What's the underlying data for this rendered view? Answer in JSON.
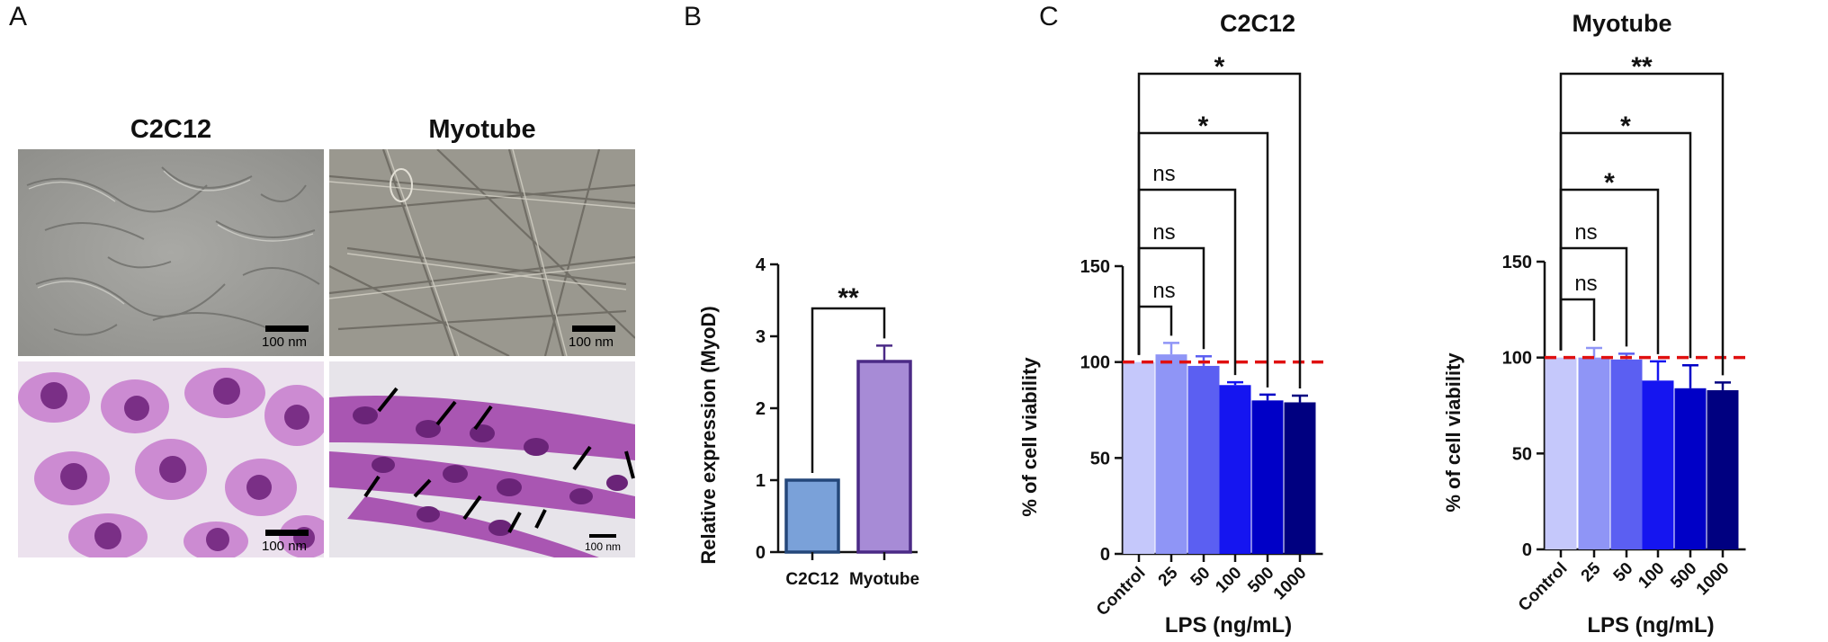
{
  "panels": {
    "a_label": "A",
    "b_label": "B",
    "c_label": "C"
  },
  "micrographs": {
    "col_titles": [
      "C2C12",
      "Myotube"
    ],
    "scale_labels": [
      "100 nm",
      "100 nm",
      "100 nm",
      "100 nm"
    ]
  },
  "colors": {
    "control": "#c5c8fb",
    "lps25": "#8f95f6",
    "lps50": "#5b5ff2",
    "lps100": "#1515f0",
    "lps500": "#0000c7",
    "lps1000": "#000080",
    "c2c12_bar": "#7aa1d9",
    "c2c12_edge": "#24477a",
    "myotube_bar": "#a78bd6",
    "myotube_edge": "#4b2a86",
    "refline": "#e01010"
  },
  "chart_data": [
    {
      "type": "bar",
      "ylabel": "Relative expression (MyoD)",
      "categories": [
        "C2C12",
        "Myotube"
      ],
      "values": [
        1.0,
        2.65
      ],
      "errors": [
        0,
        0.22
      ],
      "ylim": [
        0,
        4
      ],
      "yticks": [
        "0",
        "1",
        "2",
        "3",
        "4"
      ],
      "significance": [
        {
          "from": 0,
          "to": 1,
          "label": "**"
        }
      ]
    },
    {
      "type": "bar",
      "title": "C2C12",
      "xlabel": "LPS (ng/mL)",
      "ylabel": "% of cell viability",
      "categories": [
        "Control",
        "25",
        "50",
        "100",
        "500",
        "1000"
      ],
      "values": [
        100,
        104,
        98,
        88,
        80,
        79
      ],
      "errors": [
        0,
        6,
        5,
        1.5,
        3,
        3.5
      ],
      "ylim": [
        0,
        150
      ],
      "yticks": [
        "0",
        "50",
        "100",
        "150"
      ],
      "reference_line": 100,
      "significance": [
        {
          "from": 0,
          "to": 1,
          "label": "ns"
        },
        {
          "from": 0,
          "to": 2,
          "label": "ns"
        },
        {
          "from": 0,
          "to": 3,
          "label": "ns"
        },
        {
          "from": 0,
          "to": 4,
          "label": "*"
        },
        {
          "from": 0,
          "to": 5,
          "label": "*"
        }
      ]
    },
    {
      "type": "bar",
      "title": "Myotube",
      "xlabel": "LPS (ng/mL)",
      "ylabel": "% of cell viability",
      "categories": [
        "Control",
        "25",
        "50",
        "100",
        "500",
        "1000"
      ],
      "values": [
        100,
        100,
        99,
        88,
        84,
        83
      ],
      "errors": [
        0,
        5,
        3,
        10,
        12,
        4
      ],
      "ylim": [
        0,
        150
      ],
      "yticks": [
        "0",
        "50",
        "100",
        "150"
      ],
      "reference_line": 100,
      "significance": [
        {
          "from": 0,
          "to": 1,
          "label": "ns"
        },
        {
          "from": 0,
          "to": 2,
          "label": "ns"
        },
        {
          "from": 0,
          "to": 3,
          "label": "*"
        },
        {
          "from": 0,
          "to": 4,
          "label": "*"
        },
        {
          "from": 0,
          "to": 5,
          "label": "**"
        }
      ]
    }
  ]
}
